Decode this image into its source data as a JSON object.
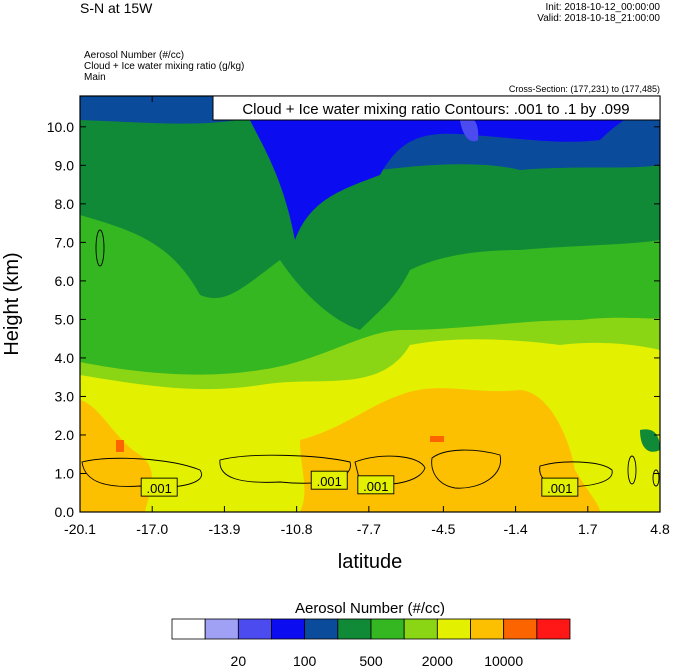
{
  "header": {
    "title": "S-N at 15W",
    "init": "Init: 2018-10-12_00:00:00",
    "valid": "Valid: 2018-10-18_21:00:00",
    "fields": [
      "Aerosol Number   (#/cc)",
      "Cloud + Ice water mixing ratio   (g/kg)",
      "Main"
    ],
    "cross_section": "Cross-Section: (177,231) to (177,485)"
  },
  "chart_data": {
    "type": "heatmap",
    "contour_label": "Cloud + Ice water mixing ratio Contours: .001 to .1 by .099",
    "xlabel": "latitude",
    "ylabel": "Height (km)",
    "xlim": [
      -20.1,
      4.8
    ],
    "ylim": [
      0.0,
      10.8
    ],
    "xticks": [
      "-20.1",
      "-17.0",
      "-13.9",
      "-10.8",
      "-7.7",
      "-4.5",
      "-1.4",
      "1.7",
      "4.8"
    ],
    "xtick_values": [
      -20.1,
      -17.0,
      -13.9,
      -10.8,
      -7.7,
      -4.5,
      -1.4,
      1.7,
      4.8
    ],
    "yticks": [
      "0.0",
      "1.0",
      "2.0",
      "3.0",
      "4.0",
      "5.0",
      "6.0",
      "7.0",
      "8.0",
      "9.0",
      "10.0"
    ],
    "ytick_values": [
      0,
      1,
      2,
      3,
      4,
      5,
      6,
      7,
      8,
      9,
      10
    ],
    "contour_labels": [
      {
        "text": ".001",
        "x": -16.7,
        "y": 0.62
      },
      {
        "text": ".001",
        "x": -9.4,
        "y": 0.8
      },
      {
        "text": ".001",
        "x": -7.4,
        "y": 0.68
      },
      {
        "text": ".001",
        "x": 0.5,
        "y": 0.62
      }
    ],
    "colorbar": {
      "title": "Aerosol Number  (#/cc)",
      "colors": [
        "#ffffff",
        "#a0a0f5",
        "#4b4bf0",
        "#0c0cf0",
        "#0b4b9c",
        "#118a37",
        "#35b721",
        "#8ad614",
        "#e3f100",
        "#fcc000",
        "#fc6400",
        "#ff1616"
      ],
      "labels": [
        "20",
        "100",
        "500",
        "2000",
        "10000"
      ]
    }
  }
}
